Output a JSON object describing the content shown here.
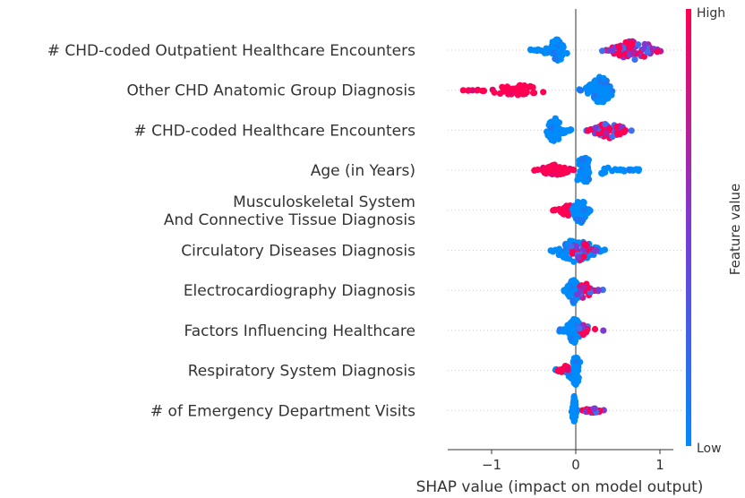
{
  "chart_data": {
    "type": "scatter",
    "subtype": "shap-beeswarm",
    "title": "",
    "xlabel": "SHAP value (impact on model output)",
    "ylabel": "",
    "xlim": [
      -1.5,
      1.15
    ],
    "xticks": [
      -1,
      0,
      1
    ],
    "xtick_labels": [
      "−1",
      "0",
      "1"
    ],
    "grid": "dotted horizontal per feature",
    "colorbar": {
      "title": "Feature value",
      "high_label": "High",
      "low_label": "Low",
      "low_color": "#008bfb",
      "mid_color": "#7c3ad2",
      "high_color": "#ff0052",
      "placement": "right"
    },
    "features": [
      {
        "name": "# CHD-coded Outpatient Healthcare Encounters",
        "clusters": [
          {
            "x_min": -0.55,
            "x_max": -0.1,
            "center": -0.22,
            "spread": 0.7,
            "feature_value": "low",
            "n": 70
          },
          {
            "x_min": 0.3,
            "x_max": 1.02,
            "center": 0.7,
            "spread": 0.7,
            "feature_value": "high-mixed",
            "n": 70
          }
        ]
      },
      {
        "name": "Other CHD Anatomic Group Diagnosis",
        "clusters": [
          {
            "x_min": -1.4,
            "x_max": -0.35,
            "center": -0.7,
            "spread": 0.35,
            "feature_value": "high",
            "n": 50
          },
          {
            "x_min": 0.02,
            "x_max": 0.45,
            "center": 0.3,
            "spread": 0.9,
            "feature_value": "low",
            "n": 100
          }
        ]
      },
      {
        "name": "# CHD-coded Healthcare Encounters",
        "clusters": [
          {
            "x_min": -0.35,
            "x_max": -0.05,
            "center": -0.25,
            "spread": 0.8,
            "feature_value": "low",
            "n": 60
          },
          {
            "x_min": 0.12,
            "x_max": 0.68,
            "center": 0.4,
            "spread": 0.5,
            "feature_value": "high-mixed",
            "n": 70
          }
        ]
      },
      {
        "name": "Age (in Years)",
        "clusters": [
          {
            "x_min": -0.5,
            "x_max": 0.0,
            "center": -0.25,
            "spread": 0.35,
            "feature_value": "high",
            "n": 60
          },
          {
            "x_min": 0.0,
            "x_max": 0.75,
            "center": 0.1,
            "spread": 0.8,
            "feature_value": "low",
            "n": 70
          }
        ]
      },
      {
        "name": "Musculoskeletal System\nAnd Connective Tissue Diagnosis",
        "clusters": [
          {
            "x_min": -0.28,
            "x_max": -0.02,
            "center": -0.1,
            "spread": 0.45,
            "feature_value": "high",
            "n": 25
          },
          {
            "x_min": -0.05,
            "x_max": 0.18,
            "center": 0.05,
            "spread": 0.9,
            "feature_value": "low",
            "n": 80
          }
        ]
      },
      {
        "name": "Circulatory Diseases Diagnosis",
        "clusters": [
          {
            "x_min": -0.3,
            "x_max": 0.35,
            "center": 0.0,
            "spread": 0.8,
            "feature_value": "low",
            "n": 80
          },
          {
            "x_min": -0.1,
            "x_max": 0.28,
            "center": 0.05,
            "spread": 0.6,
            "feature_value": "high-mixed",
            "n": 30
          }
        ]
      },
      {
        "name": "Electrocardiography Diagnosis",
        "clusters": [
          {
            "x_min": -0.15,
            "x_max": 0.08,
            "center": -0.03,
            "spread": 0.85,
            "feature_value": "low",
            "n": 80
          },
          {
            "x_min": 0.0,
            "x_max": 0.33,
            "center": 0.1,
            "spread": 0.5,
            "feature_value": "high-mixed",
            "n": 25
          }
        ]
      },
      {
        "name": "Factors Influencing Healthcare",
        "clusters": [
          {
            "x_min": -0.2,
            "x_max": 0.08,
            "center": -0.02,
            "spread": 0.85,
            "feature_value": "low",
            "n": 80
          },
          {
            "x_min": 0.0,
            "x_max": 0.36,
            "center": 0.1,
            "spread": 0.35,
            "feature_value": "high-mixed",
            "n": 20
          }
        ]
      },
      {
        "name": "Respiratory System Diagnosis",
        "clusters": [
          {
            "x_min": -0.25,
            "x_max": 0.05,
            "center": 0.0,
            "spread": 0.9,
            "feature_value": "low",
            "n": 80
          },
          {
            "x_min": -0.22,
            "x_max": -0.05,
            "center": -0.12,
            "spread": 0.3,
            "feature_value": "high",
            "n": 10
          }
        ]
      },
      {
        "name": "# of Emergency Department Visits",
        "clusters": [
          {
            "x_min": -0.05,
            "x_max": 0.02,
            "center": -0.02,
            "spread": 1.0,
            "feature_value": "low",
            "n": 60
          },
          {
            "x_min": 0.02,
            "x_max": 0.35,
            "center": 0.2,
            "spread": 0.15,
            "feature_value": "high-mixed",
            "n": 25
          }
        ]
      }
    ]
  }
}
